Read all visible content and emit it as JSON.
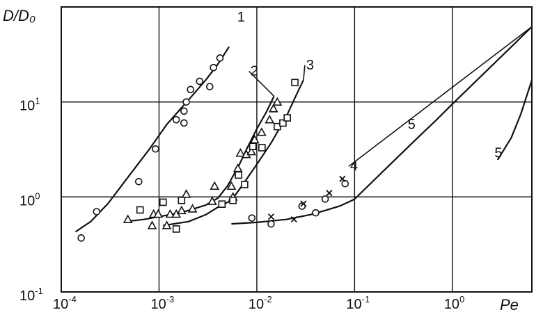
{
  "chart_data": {
    "type": "scatter",
    "title": "",
    "xlabel": "Pe",
    "ylabel": "D/D₀",
    "x_scale": "log",
    "y_scale": "log",
    "xlim": [
      0.0001,
      6.5
    ],
    "ylim": [
      0.1,
      100
    ],
    "grid": true,
    "x_ticks": [
      {
        "base": "10",
        "exp": "-4",
        "value": 0.0001
      },
      {
        "base": "10",
        "exp": "-3",
        "value": 0.001
      },
      {
        "base": "10",
        "exp": "-2",
        "value": 0.01
      },
      {
        "base": "10",
        "exp": "-1",
        "value": 0.1
      },
      {
        "base": "10",
        "exp": "0",
        "value": 1
      }
    ],
    "y_ticks": [
      {
        "base": "10",
        "exp": "-1",
        "value": 0.1
      },
      {
        "base": "10",
        "exp": "0",
        "value": 1
      },
      {
        "base": "10",
        "exp": "1",
        "value": 10
      }
    ],
    "curves": [
      {
        "label": "1",
        "label_at": [
          0.0063,
          70
        ],
        "label_line": false,
        "points": [
          [
            0.00014,
            0.43
          ],
          [
            0.0002,
            0.55
          ],
          [
            0.0003,
            0.85
          ],
          [
            0.0005,
            1.7
          ],
          [
            0.0008,
            3.2
          ],
          [
            0.0012,
            5.8
          ],
          [
            0.002,
            10.5
          ],
          [
            0.003,
            17
          ],
          [
            0.004,
            25
          ],
          [
            0.0052,
            38
          ]
        ]
      },
      {
        "label": "2",
        "label_at": [
          0.0086,
          19
        ],
        "label_line": true,
        "points": [
          [
            0.00045,
            0.55
          ],
          [
            0.0007,
            0.58
          ],
          [
            0.001,
            0.62
          ],
          [
            0.0015,
            0.67
          ],
          [
            0.002,
            0.72
          ],
          [
            0.003,
            0.82
          ],
          [
            0.004,
            0.97
          ],
          [
            0.005,
            1.3
          ],
          [
            0.0065,
            2.1
          ],
          [
            0.008,
            3.3
          ],
          [
            0.01,
            5.2
          ],
          [
            0.0125,
            7.8
          ],
          [
            0.015,
            11.5
          ]
        ]
      },
      {
        "label": "3",
        "label_at": [
          0.032,
          22
        ],
        "label_line": true,
        "points": [
          [
            0.0011,
            0.5
          ],
          [
            0.002,
            0.55
          ],
          [
            0.003,
            0.65
          ],
          [
            0.004,
            0.78
          ],
          [
            0.0055,
            0.92
          ],
          [
            0.007,
            1.3
          ],
          [
            0.01,
            2.2
          ],
          [
            0.014,
            3.7
          ],
          [
            0.02,
            7
          ],
          [
            0.025,
            11.5
          ],
          [
            0.03,
            17
          ]
        ]
      },
      {
        "label": "4",
        "label_at": [
          0.09,
          1.9
        ],
        "label_line": true,
        "points": [
          [
            0.0055,
            0.52
          ],
          [
            0.01,
            0.54
          ],
          [
            0.02,
            0.58
          ],
          [
            0.035,
            0.65
          ],
          [
            0.05,
            0.72
          ],
          [
            0.07,
            0.8
          ],
          [
            0.09,
            0.9
          ],
          [
            0.1,
            0.95
          ],
          [
            0.2,
            1.9
          ],
          [
            0.4,
            3.8
          ],
          [
            0.7,
            6.6
          ],
          [
            1,
            9.5
          ],
          [
            2,
            19
          ],
          [
            4,
            38
          ],
          [
            6.5,
            62
          ]
        ]
      },
      {
        "label": "5",
        "label_at": [
          0.35,
          5.2
        ],
        "label_line": false,
        "points": []
      },
      {
        "label": "5",
        "label_at": [
          2.7,
          2.6
        ],
        "label_line": false,
        "points": [
          [
            2.9,
            2.45
          ],
          [
            4,
            4.2
          ],
          [
            5,
            7.4
          ],
          [
            6.5,
            17
          ]
        ]
      }
    ],
    "series": [
      {
        "marker": "circle",
        "points": [
          [
            0.00016,
            0.37
          ],
          [
            0.00023,
            0.7
          ],
          [
            0.00062,
            1.45
          ],
          [
            0.00092,
            3.2
          ],
          [
            0.0015,
            6.5
          ],
          [
            0.0018,
            6.0
          ],
          [
            0.0018,
            8.0
          ],
          [
            0.0019,
            10.0
          ],
          [
            0.0021,
            13.5
          ],
          [
            0.0026,
            16.5
          ],
          [
            0.0033,
            14.5
          ],
          [
            0.0036,
            23.0
          ],
          [
            0.0042,
            29.0
          ],
          [
            0.0089,
            0.6
          ],
          [
            0.014,
            0.52
          ],
          [
            0.029,
            0.8
          ],
          [
            0.04,
            0.68
          ],
          [
            0.05,
            0.95
          ],
          [
            0.08,
            1.38
          ]
        ]
      },
      {
        "marker": "triangle",
        "points": [
          [
            0.00048,
            0.58
          ],
          [
            0.00085,
            0.5
          ],
          [
            0.00088,
            0.66
          ],
          [
            0.00098,
            0.66
          ],
          [
            0.0012,
            0.5
          ],
          [
            0.0013,
            0.66
          ],
          [
            0.0015,
            0.66
          ],
          [
            0.0017,
            0.72
          ],
          [
            0.0019,
            1.07
          ],
          [
            0.0022,
            0.75
          ],
          [
            0.0035,
            0.9
          ],
          [
            0.0037,
            1.3
          ],
          [
            0.0055,
            1.3
          ],
          [
            0.0057,
            1.0
          ],
          [
            0.0064,
            2.0
          ],
          [
            0.0068,
            2.9
          ],
          [
            0.0078,
            2.8
          ],
          [
            0.0088,
            3.0
          ],
          [
            0.0095,
            4.0
          ],
          [
            0.0112,
            4.8
          ],
          [
            0.0135,
            6.5
          ],
          [
            0.0148,
            8.5
          ],
          [
            0.0162,
            10.0
          ]
        ]
      },
      {
        "marker": "square",
        "points": [
          [
            0.00064,
            0.73
          ],
          [
            0.0011,
            0.88
          ],
          [
            0.0015,
            0.46
          ],
          [
            0.0017,
            0.92
          ],
          [
            0.0044,
            0.84
          ],
          [
            0.0057,
            0.92
          ],
          [
            0.0065,
            1.7
          ],
          [
            0.0075,
            1.35
          ],
          [
            0.0091,
            3.4
          ],
          [
            0.0113,
            3.3
          ],
          [
            0.0162,
            5.5
          ],
          [
            0.0185,
            6.0
          ],
          [
            0.0205,
            6.8
          ],
          [
            0.0245,
            16.0
          ]
        ]
      },
      {
        "marker": "cross",
        "points": [
          [
            0.014,
            0.62
          ],
          [
            0.024,
            0.58
          ],
          [
            0.03,
            0.85
          ],
          [
            0.055,
            1.1
          ],
          [
            0.075,
            1.55
          ]
        ]
      }
    ]
  }
}
